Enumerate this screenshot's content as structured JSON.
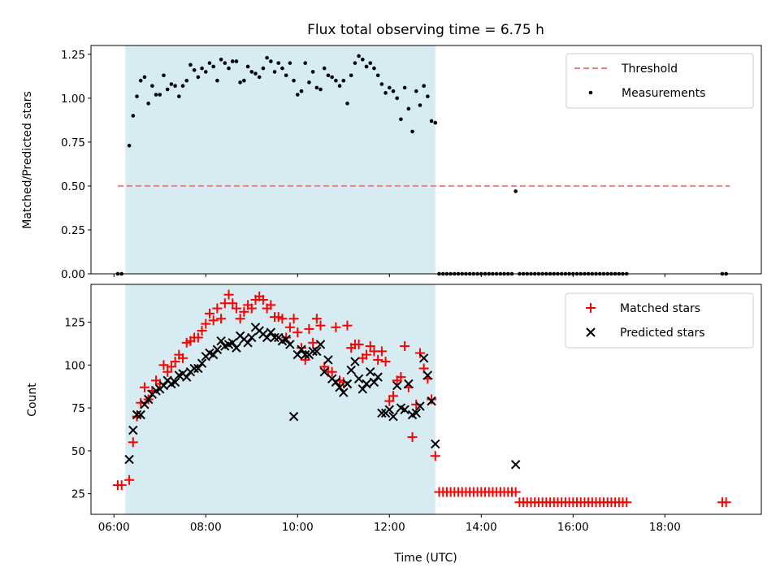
{
  "chart_data": [
    {
      "type": "scatter",
      "title": "Flux total observing time = 6.75 h",
      "ylabel": "Matched/Predicted stars",
      "xlim_hours": [
        5.5,
        20.1
      ],
      "ylim": [
        0,
        1.3
      ],
      "yticks": [
        0.0,
        0.25,
        0.5,
        0.75,
        1.0,
        1.25
      ],
      "ytick_labels": [
        "0.00",
        "0.25",
        "0.50",
        "0.75",
        "1.00",
        "1.25"
      ],
      "shaded_span": {
        "from": "06:15",
        "to": "13:00",
        "color": "#add8e6"
      },
      "threshold": {
        "name": "Threshold",
        "value": 0.5,
        "from": "06:05",
        "to": "19:25",
        "color": "#f08080"
      },
      "legend_position": "top-right",
      "series": [
        {
          "name": "Measurements",
          "color": "#000000",
          "x": [
            "06:05",
            "06:10",
            "06:20",
            "06:25",
            "06:30",
            "06:35",
            "06:40",
            "06:45",
            "06:50",
            "06:55",
            "07:00",
            "07:05",
            "07:10",
            "07:15",
            "07:20",
            "07:25",
            "07:30",
            "07:35",
            "07:40",
            "07:45",
            "07:50",
            "07:55",
            "08:00",
            "08:05",
            "08:10",
            "08:15",
            "08:20",
            "08:25",
            "08:30",
            "08:35",
            "08:40",
            "08:45",
            "08:50",
            "08:55",
            "09:00",
            "09:05",
            "09:10",
            "09:15",
            "09:20",
            "09:25",
            "09:30",
            "09:35",
            "09:40",
            "09:45",
            "09:50",
            "09:55",
            "10:00",
            "10:05",
            "10:10",
            "10:15",
            "10:20",
            "10:25",
            "10:30",
            "10:35",
            "10:40",
            "10:45",
            "10:50",
            "10:55",
            "11:00",
            "11:05",
            "11:10",
            "11:15",
            "11:20",
            "11:25",
            "11:30",
            "11:35",
            "11:40",
            "11:45",
            "11:50",
            "11:55",
            "12:00",
            "12:05",
            "12:10",
            "12:15",
            "12:20",
            "12:25",
            "12:30",
            "12:35",
            "12:40",
            "12:45",
            "12:50",
            "12:55",
            "13:00",
            "13:05",
            "13:10",
            "13:15",
            "13:20",
            "13:25",
            "13:30",
            "13:35",
            "13:40",
            "13:45",
            "13:50",
            "13:55",
            "14:00",
            "14:05",
            "14:10",
            "14:15",
            "14:20",
            "14:25",
            "14:30",
            "14:35",
            "14:40",
            "14:45",
            "14:50",
            "14:55",
            "15:00",
            "15:05",
            "15:10",
            "15:15",
            "15:20",
            "15:25",
            "15:30",
            "15:35",
            "15:40",
            "15:45",
            "15:50",
            "15:55",
            "16:00",
            "16:05",
            "16:10",
            "16:15",
            "16:20",
            "16:25",
            "16:30",
            "16:35",
            "16:40",
            "16:45",
            "16:50",
            "16:55",
            "17:00",
            "17:05",
            "17:10",
            "19:15",
            "19:20"
          ],
          "y": [
            0,
            0,
            0.73,
            0.9,
            1.01,
            1.1,
            1.12,
            0.97,
            1.07,
            1.02,
            1.02,
            1.13,
            1.05,
            1.08,
            1.07,
            1.01,
            1.07,
            1.1,
            1.19,
            1.16,
            1.12,
            1.17,
            1.15,
            1.2,
            1.18,
            1.1,
            1.22,
            1.2,
            1.17,
            1.21,
            1.21,
            1.09,
            1.1,
            1.18,
            1.15,
            1.14,
            1.12,
            1.17,
            1.23,
            1.21,
            1.15,
            1.2,
            1.17,
            1.13,
            1.2,
            1.1,
            1.02,
            1.04,
            1.2,
            1.09,
            1.15,
            1.06,
            1.05,
            1.17,
            1.13,
            1.12,
            1.1,
            1.07,
            1.1,
            0.97,
            1.13,
            1.2,
            1.24,
            1.22,
            1.18,
            1.2,
            1.17,
            1.13,
            1.08,
            1.03,
            1.06,
            1.04,
            1.0,
            0.88,
            1.06,
            0.94,
            0.81,
            1.04,
            0.96,
            1.07,
            1.01,
            0.87,
            0.86,
            0,
            0,
            0,
            0,
            0,
            0,
            0,
            0,
            0,
            0,
            0,
            0,
            0,
            0,
            0,
            0,
            0,
            0,
            0,
            0,
            0.47,
            0,
            0,
            0,
            0,
            0,
            0,
            0,
            0,
            0,
            0,
            0,
            0,
            0,
            0,
            0,
            0,
            0,
            0,
            0,
            0,
            0,
            0,
            0,
            0,
            0,
            0,
            0,
            0,
            0,
            0,
            0
          ]
        }
      ]
    },
    {
      "type": "scatter",
      "xlabel": "Time (UTC)",
      "ylabel": "Count",
      "xlim_hours": [
        5.5,
        20.1
      ],
      "ylim": [
        13,
        147
      ],
      "yticks": [
        25,
        50,
        75,
        100,
        125
      ],
      "xtick_labels": [
        "06:00",
        "08:00",
        "10:00",
        "12:00",
        "14:00",
        "16:00",
        "18:00"
      ],
      "shaded_span": {
        "from": "06:15",
        "to": "13:00",
        "color": "#add8e6"
      },
      "legend_position": "top-right",
      "series": [
        {
          "name": "Matched stars",
          "marker": "plus",
          "color": "#ff0000",
          "x": [
            "06:05",
            "06:10",
            "06:20",
            "06:25",
            "06:30",
            "06:35",
            "06:40",
            "06:45",
            "06:50",
            "06:55",
            "07:00",
            "07:05",
            "07:10",
            "07:15",
            "07:20",
            "07:25",
            "07:30",
            "07:35",
            "07:40",
            "07:45",
            "07:50",
            "07:55",
            "08:00",
            "08:05",
            "08:10",
            "08:15",
            "08:20",
            "08:25",
            "08:30",
            "08:35",
            "08:40",
            "08:45",
            "08:50",
            "08:55",
            "09:00",
            "09:05",
            "09:10",
            "09:15",
            "09:20",
            "09:25",
            "09:30",
            "09:35",
            "09:40",
            "09:45",
            "09:50",
            "09:55",
            "10:00",
            "10:05",
            "10:10",
            "10:15",
            "10:20",
            "10:25",
            "10:30",
            "10:35",
            "10:40",
            "10:45",
            "10:50",
            "10:55",
            "11:00",
            "11:05",
            "11:10",
            "11:15",
            "11:20",
            "11:25",
            "11:30",
            "11:35",
            "11:40",
            "11:45",
            "11:50",
            "11:55",
            "12:00",
            "12:05",
            "12:10",
            "12:15",
            "12:20",
            "12:25",
            "12:30",
            "12:35",
            "12:40",
            "12:45",
            "12:50",
            "12:55",
            "13:00",
            "13:05",
            "13:10",
            "13:15",
            "13:20",
            "13:25",
            "13:30",
            "13:35",
            "13:40",
            "13:45",
            "13:50",
            "13:55",
            "14:00",
            "14:05",
            "14:10",
            "14:15",
            "14:20",
            "14:25",
            "14:30",
            "14:35",
            "14:40",
            "14:45",
            "14:50",
            "14:55",
            "15:00",
            "15:05",
            "15:10",
            "15:15",
            "15:20",
            "15:25",
            "15:30",
            "15:35",
            "15:40",
            "15:45",
            "15:50",
            "15:55",
            "16:00",
            "16:05",
            "16:10",
            "16:15",
            "16:20",
            "16:25",
            "16:30",
            "16:35",
            "16:40",
            "16:45",
            "16:50",
            "16:55",
            "17:00",
            "17:05",
            "17:10",
            "19:15",
            "19:20"
          ],
          "y": [
            30,
            30,
            33,
            55,
            70,
            78,
            87,
            80,
            85,
            91,
            89,
            100,
            96,
            99,
            102,
            106,
            104,
            113,
            114,
            116,
            116,
            120,
            124,
            130,
            126,
            133,
            127,
            136,
            141,
            136,
            133,
            127,
            131,
            135,
            133,
            138,
            140,
            138,
            133,
            135,
            128,
            128,
            127,
            116,
            122,
            127,
            119,
            110,
            103,
            121,
            113,
            127,
            123,
            99,
            96,
            96,
            122,
            91,
            90,
            123,
            110,
            112,
            112,
            104,
            106,
            111,
            108,
            103,
            108,
            102,
            79,
            82,
            91,
            93,
            111,
            87,
            58,
            77,
            107,
            98,
            92,
            80,
            47,
            26,
            26,
            26,
            26,
            26,
            26,
            26,
            26,
            26,
            26,
            26,
            26,
            26,
            26,
            26,
            26,
            26,
            26,
            26,
            26,
            26,
            20,
            20,
            20,
            20,
            20,
            20,
            20,
            20,
            20,
            20,
            20,
            20,
            20,
            20,
            20,
            20,
            20,
            20,
            20,
            20,
            20,
            20,
            20,
            20,
            20,
            20,
            20,
            20,
            20,
            20,
            20
          ]
        },
        {
          "name": "Predicted stars",
          "marker": "cross",
          "color": "#000000",
          "x": [
            "06:20",
            "06:25",
            "06:30",
            "06:35",
            "06:40",
            "06:45",
            "06:50",
            "06:55",
            "07:00",
            "07:05",
            "07:10",
            "07:15",
            "07:20",
            "07:25",
            "07:30",
            "07:35",
            "07:40",
            "07:45",
            "07:50",
            "07:55",
            "08:00",
            "08:05",
            "08:10",
            "08:15",
            "08:20",
            "08:25",
            "08:30",
            "08:35",
            "08:40",
            "08:45",
            "08:50",
            "08:55",
            "09:00",
            "09:05",
            "09:10",
            "09:15",
            "09:20",
            "09:25",
            "09:30",
            "09:35",
            "09:40",
            "09:45",
            "09:50",
            "09:55",
            "10:00",
            "10:05",
            "10:10",
            "10:15",
            "10:20",
            "10:25",
            "10:30",
            "10:35",
            "10:40",
            "10:45",
            "10:50",
            "10:55",
            "11:00",
            "11:05",
            "11:10",
            "11:15",
            "11:20",
            "11:25",
            "11:30",
            "11:35",
            "11:40",
            "11:45",
            "11:50",
            "11:55",
            "12:00",
            "12:05",
            "12:10",
            "12:15",
            "12:20",
            "12:25",
            "12:30",
            "12:35",
            "12:40",
            "12:45",
            "12:50",
            "12:55",
            "13:00",
            "14:45"
          ],
          "y": [
            45,
            62,
            71,
            71,
            77,
            80,
            83,
            85,
            86,
            88,
            91,
            89,
            90,
            94,
            95,
            93,
            96,
            98,
            98,
            101,
            105,
            107,
            106,
            109,
            114,
            111,
            112,
            113,
            110,
            117,
            115,
            113,
            116,
            122,
            120,
            118,
            116,
            119,
            116,
            116,
            114,
            115,
            112,
            70,
            106,
            109,
            106,
            106,
            108,
            108,
            112,
            96,
            103,
            92,
            90,
            87,
            84,
            89,
            97,
            102,
            92,
            86,
            89,
            96,
            90,
            93,
            72,
            72,
            74,
            70,
            88,
            75,
            74,
            89,
            71,
            72,
            76,
            104,
            94,
            79,
            54,
            42
          ]
        }
      ]
    }
  ]
}
